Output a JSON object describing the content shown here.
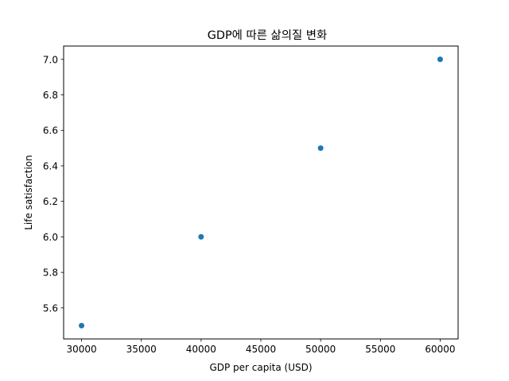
{
  "chart_data": {
    "type": "scatter",
    "title": "GDP에 따른 삶의질 변화",
    "xlabel": "GDP per capita (USD)",
    "ylabel": "Life satisfaction",
    "x": [
      30000,
      40000,
      50000,
      60000
    ],
    "y": [
      5.5,
      6.0,
      6.5,
      7.0
    ],
    "xlim": [
      28500,
      61500
    ],
    "ylim": [
      5.425,
      7.075
    ],
    "xticks": [
      30000,
      35000,
      40000,
      45000,
      50000,
      55000,
      60000
    ],
    "yticks": [
      5.6,
      5.8,
      6.0,
      6.2,
      6.4,
      6.6,
      6.8,
      7.0
    ],
    "xtick_labels": [
      "30000",
      "35000",
      "40000",
      "45000",
      "50000",
      "55000",
      "60000"
    ],
    "ytick_labels": [
      "5.6",
      "5.8",
      "6.0",
      "6.2",
      "6.4",
      "6.6",
      "6.8",
      "7.0"
    ],
    "grid": false,
    "marker_color": "#1f77b4"
  }
}
